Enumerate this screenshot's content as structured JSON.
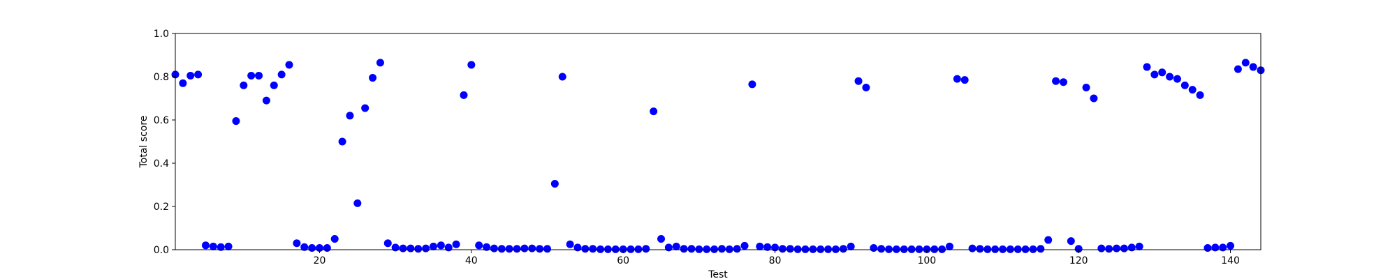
{
  "chart_data": {
    "type": "scatter",
    "title": "",
    "xlabel": "Test",
    "ylabel": "Total score",
    "xlim": [
      1,
      144
    ],
    "ylim": [
      0.0,
      1.0
    ],
    "xticks": [
      20,
      40,
      60,
      80,
      100,
      120,
      140
    ],
    "xtick_labels": [
      "20",
      "40",
      "60",
      "80",
      "100",
      "120",
      "140"
    ],
    "yticks": [
      0.0,
      0.2,
      0.4,
      0.6,
      0.8,
      1.0
    ],
    "ytick_labels": [
      "0.0",
      "0.2",
      "0.4",
      "0.6",
      "0.8",
      "1.0"
    ],
    "grid": false,
    "legend": "none",
    "marker_color": "#0000ff",
    "x": [
      1,
      2,
      3,
      4,
      5,
      6,
      7,
      8,
      9,
      10,
      11,
      12,
      13,
      14,
      15,
      16,
      17,
      18,
      19,
      20,
      21,
      22,
      23,
      24,
      25,
      26,
      27,
      28,
      29,
      30,
      31,
      32,
      33,
      34,
      35,
      36,
      37,
      38,
      39,
      40,
      41,
      42,
      43,
      44,
      45,
      46,
      47,
      48,
      49,
      50,
      51,
      52,
      53,
      54,
      55,
      56,
      57,
      58,
      59,
      60,
      61,
      62,
      63,
      64,
      65,
      66,
      67,
      68,
      69,
      70,
      71,
      72,
      73,
      74,
      75,
      76,
      77,
      78,
      79,
      80,
      81,
      82,
      83,
      84,
      85,
      86,
      87,
      88,
      89,
      90,
      91,
      92,
      93,
      94,
      95,
      96,
      97,
      98,
      99,
      100,
      101,
      102,
      103,
      104,
      105,
      106,
      107,
      108,
      109,
      110,
      111,
      112,
      113,
      114,
      115,
      116,
      117,
      118,
      119,
      120,
      121,
      122,
      123,
      124,
      125,
      126,
      127,
      128,
      129,
      130,
      131,
      132,
      133,
      134,
      135,
      136,
      137,
      138,
      139,
      140,
      141,
      142,
      143,
      144
    ],
    "y": [
      0.81,
      0.77,
      0.805,
      0.81,
      0.02,
      0.015,
      0.012,
      0.015,
      0.595,
      0.76,
      0.805,
      0.805,
      0.69,
      0.76,
      0.81,
      0.855,
      0.03,
      0.012,
      0.008,
      0.008,
      0.008,
      0.05,
      0.5,
      0.62,
      0.215,
      0.655,
      0.795,
      0.865,
      0.03,
      0.01,
      0.006,
      0.006,
      0.004,
      0.006,
      0.015,
      0.02,
      0.01,
      0.025,
      0.715,
      0.855,
      0.02,
      0.012,
      0.006,
      0.004,
      0.004,
      0.004,
      0.006,
      0.006,
      0.004,
      0.004,
      0.305,
      0.8,
      0.025,
      0.01,
      0.004,
      0.004,
      0.002,
      0.002,
      0.002,
      0.002,
      0.002,
      0.002,
      0.004,
      0.64,
      0.05,
      0.01,
      0.015,
      0.004,
      0.004,
      0.002,
      0.002,
      0.002,
      0.004,
      0.002,
      0.004,
      0.018,
      0.765,
      0.015,
      0.012,
      0.01,
      0.004,
      0.004,
      0.002,
      0.002,
      0.002,
      0.002,
      0.002,
      0.002,
      0.004,
      0.015,
      0.78,
      0.75,
      0.008,
      0.004,
      0.002,
      0.002,
      0.002,
      0.002,
      0.002,
      0.002,
      0.002,
      0.002,
      0.015,
      0.79,
      0.785,
      0.006,
      0.004,
      0.002,
      0.002,
      0.002,
      0.002,
      0.002,
      0.002,
      0.002,
      0.004,
      0.045,
      0.78,
      0.775,
      0.04,
      0.004,
      0.75,
      0.7,
      0.006,
      0.004,
      0.006,
      0.006,
      0.01,
      0.015,
      0.845,
      0.81,
      0.82,
      0.8,
      0.79,
      0.76,
      0.74,
      0.715,
      0.008,
      0.01,
      0.01,
      0.018,
      0.835,
      0.865,
      0.845,
      0.83
    ]
  }
}
